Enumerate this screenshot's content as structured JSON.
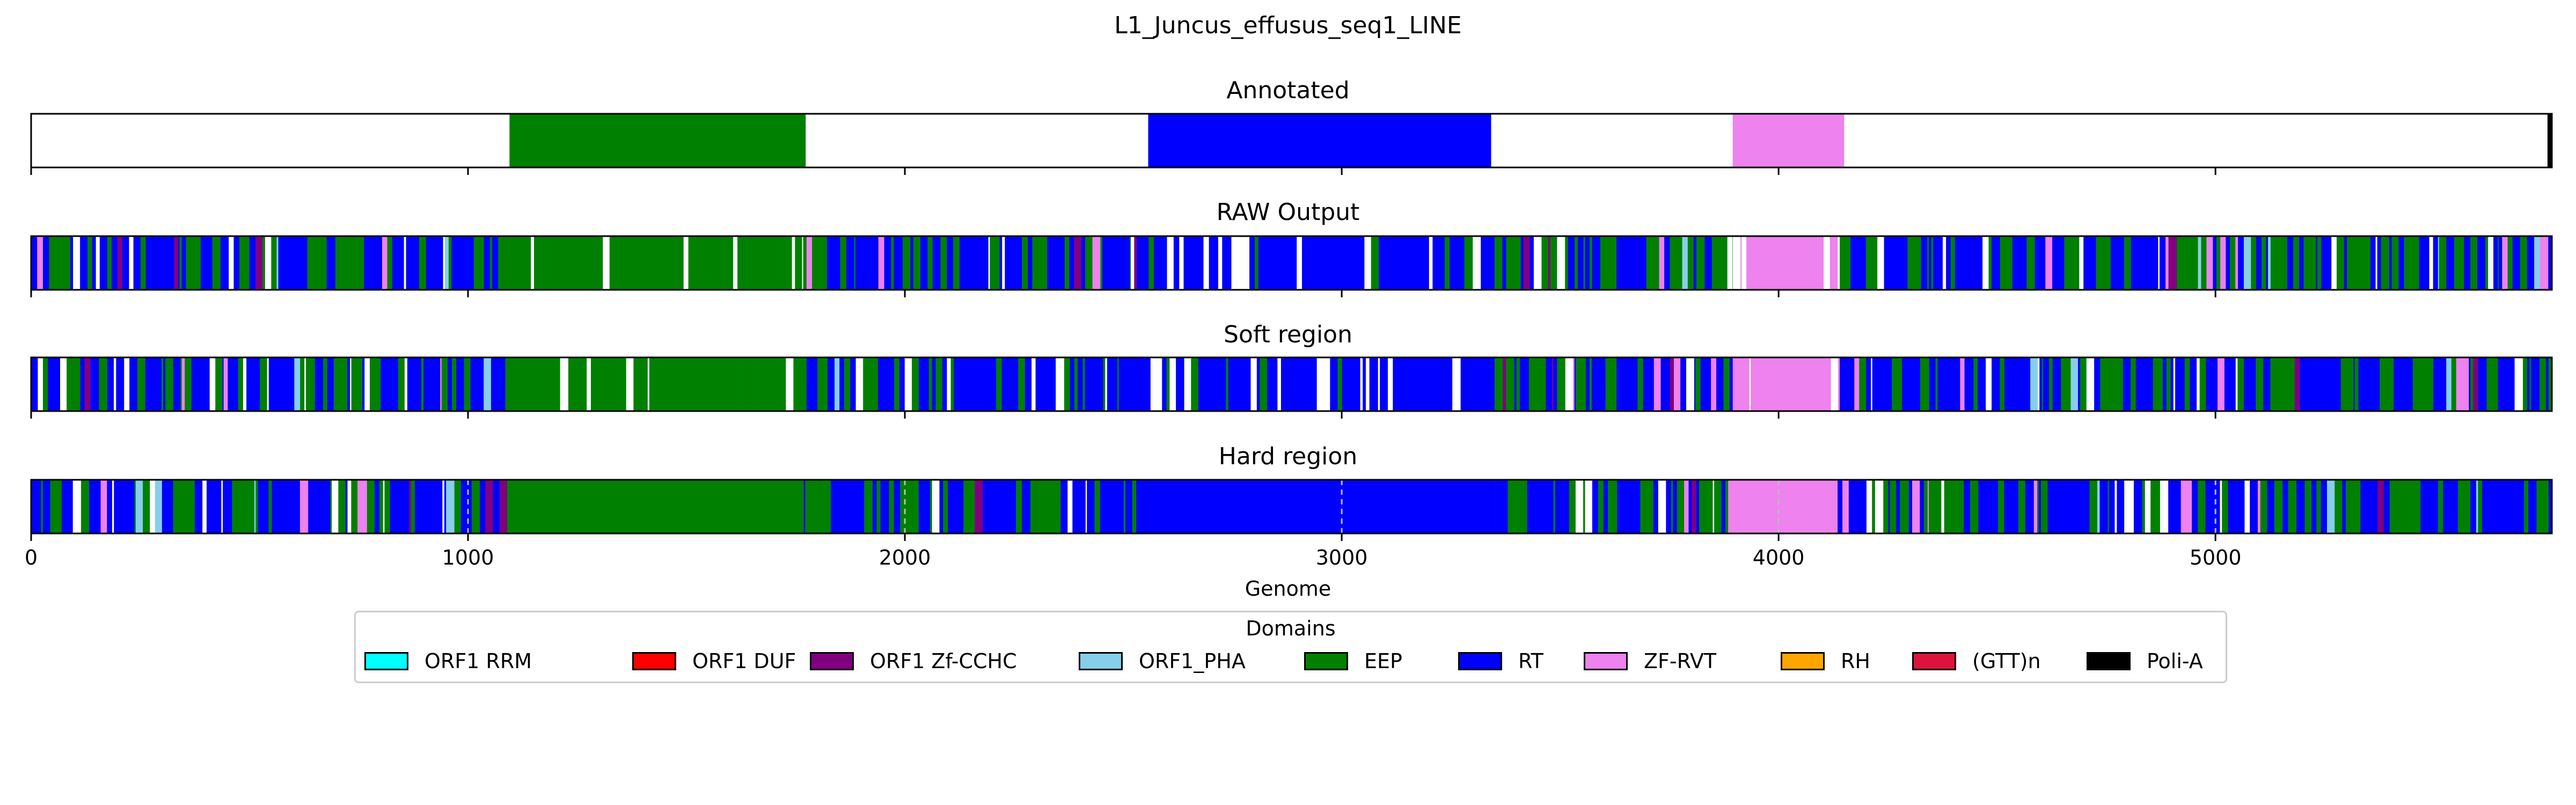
{
  "chart_data": {
    "type": "genome-domain-tracks",
    "title": "L1_Juncus_effusus_seq1_LINE",
    "xlabel": "Genome",
    "xlim": [
      0,
      5770
    ],
    "xticks": [
      0,
      1000,
      2000,
      3000,
      4000,
      5000
    ],
    "xtick_labels": [
      "0",
      "1000",
      "2000",
      "3000",
      "4000",
      "5000"
    ],
    "colors": {
      "ORF1 RRM": "#00ffff",
      "ORF1 DUF": "#ff0000",
      "ORF1 Zf-CCHC": "#800080",
      "ORF1_PHA": "#87ceeb",
      "EEP": "#008000",
      "RT": "#0000ff",
      "ZF-RVT": "#ee82ee",
      "RH": "#ffa500",
      "(GTT)n": "#dc143c",
      "Poli-A": "#000000"
    },
    "tracks": [
      {
        "title": "Annotated",
        "segments": [
          {
            "start": 1095,
            "end": 1773,
            "domain": "EEP"
          },
          {
            "start": 2557,
            "end": 3342,
            "domain": "RT"
          },
          {
            "start": 3895,
            "end": 4150,
            "domain": "ZF-RVT"
          },
          {
            "start": 5760,
            "end": 5770,
            "domain": "Poli-A"
          }
        ]
      },
      {
        "title": "RAW Output",
        "noisy": true,
        "segments": [
          {
            "start": 0,
            "end": 1090,
            "domain": "RT",
            "mix": "EEP"
          },
          {
            "start": 1090,
            "end": 1775,
            "domain": "EEP",
            "gaps": true
          },
          {
            "start": 1775,
            "end": 2570,
            "domain": "RT",
            "mix": "EEP"
          },
          {
            "start": 2570,
            "end": 3350,
            "domain": "RT",
            "gaps": true
          },
          {
            "start": 3350,
            "end": 3895,
            "domain": "RT",
            "mix": "EEP"
          },
          {
            "start": 3895,
            "end": 4140,
            "domain": "ZF-RVT",
            "gaps": true
          },
          {
            "start": 4140,
            "end": 5770,
            "domain": "RT",
            "mix": "EEP"
          }
        ]
      },
      {
        "title": "Soft region",
        "noisy": true,
        "segments": [
          {
            "start": 0,
            "end": 1090,
            "domain": "RT",
            "mix": "EEP"
          },
          {
            "start": 1090,
            "end": 1775,
            "domain": "EEP",
            "gaps": true
          },
          {
            "start": 1775,
            "end": 2570,
            "domain": "RT",
            "mix": "EEP"
          },
          {
            "start": 2570,
            "end": 3350,
            "domain": "RT",
            "gaps": true
          },
          {
            "start": 3350,
            "end": 3895,
            "domain": "RT",
            "mix": "EEP"
          },
          {
            "start": 3895,
            "end": 4140,
            "domain": "ZF-RVT",
            "gaps": true
          },
          {
            "start": 4140,
            "end": 5770,
            "domain": "RT",
            "mix": "EEP"
          }
        ]
      },
      {
        "title": "Hard region",
        "noisy": true,
        "segments": [
          {
            "start": 0,
            "end": 1095,
            "domain": "RT",
            "mix": "EEP"
          },
          {
            "start": 1095,
            "end": 1768,
            "domain": "EEP"
          },
          {
            "start": 1768,
            "end": 2555,
            "domain": "RT",
            "mix": "EEP"
          },
          {
            "start": 2555,
            "end": 3350,
            "domain": "RT"
          },
          {
            "start": 3350,
            "end": 3890,
            "domain": "RT",
            "mix": "EEP"
          },
          {
            "start": 3890,
            "end": 4135,
            "domain": "ZF-RVT"
          },
          {
            "start": 4135,
            "end": 5770,
            "domain": "RT",
            "mix": "EEP"
          }
        ]
      }
    ],
    "legend": {
      "title": "Domains",
      "position": "bottom-center",
      "entries": [
        "ORF1 RRM",
        "ORF1 DUF",
        "ORF1 Zf-CCHC",
        "ORF1_PHA",
        "EEP",
        "RT",
        "ZF-RVT",
        "RH",
        "(GTT)n",
        "Poli-A"
      ]
    },
    "grid": "dashed vertical lines at x ticks (hard region only)"
  }
}
